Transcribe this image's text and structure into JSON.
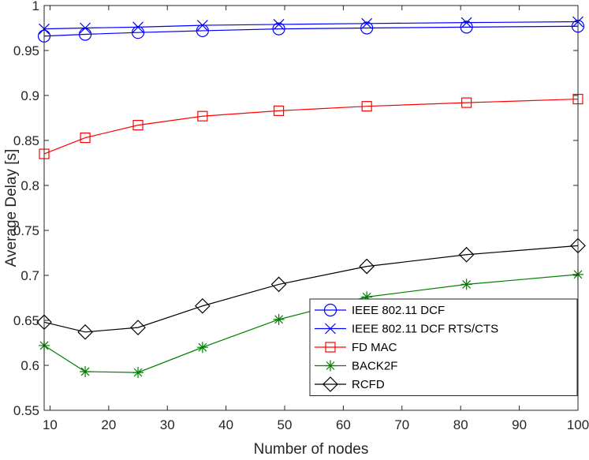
{
  "chart_data": {
    "type": "line",
    "title": "",
    "xlabel": "Number of nodes",
    "ylabel": "Average Delay [s]",
    "xlim": [
      9,
      100
    ],
    "ylim": [
      0.55,
      1.0
    ],
    "x_ticks": [
      10,
      20,
      30,
      40,
      50,
      60,
      70,
      80,
      90,
      100
    ],
    "y_ticks": [
      0.55,
      0.6,
      0.65,
      0.7,
      0.75,
      0.8,
      0.85,
      0.9,
      0.95,
      1.0
    ],
    "x_tick_labels": [
      "10",
      "20",
      "30",
      "40",
      "50",
      "60",
      "70",
      "80",
      "90",
      "100"
    ],
    "y_tick_labels": [
      "0.55",
      "0.6",
      "0.65",
      "0.7",
      "0.75",
      "0.8",
      "0.85",
      "0.9",
      "0.95",
      "1"
    ],
    "grid": false,
    "legend_position": "bottom-right",
    "x": [
      9,
      16,
      25,
      36,
      49,
      64,
      81,
      100
    ],
    "series": [
      {
        "name": "IEEE 802.11 DCF",
        "color": "#0000ff",
        "marker": "circle",
        "values": [
          0.966,
          0.968,
          0.97,
          0.972,
          0.974,
          0.975,
          0.976,
          0.977
        ]
      },
      {
        "name": "IEEE 802.11 DCF RTS/CTS",
        "color": "#0000ff",
        "marker": "x",
        "values": [
          0.974,
          0.975,
          0.976,
          0.978,
          0.979,
          0.98,
          0.981,
          0.982
        ]
      },
      {
        "name": "FD MAC",
        "color": "#ff0000",
        "marker": "square",
        "values": [
          0.835,
          0.853,
          0.867,
          0.877,
          0.883,
          0.888,
          0.892,
          0.896
        ]
      },
      {
        "name": "BACK2F",
        "color": "#008000",
        "marker": "asterisk",
        "values": [
          0.622,
          0.593,
          0.592,
          0.62,
          0.651,
          0.676,
          0.69,
          0.701
        ]
      },
      {
        "name": "RCFD",
        "color": "#000000",
        "marker": "diamond",
        "values": [
          0.648,
          0.637,
          0.642,
          0.666,
          0.69,
          0.71,
          0.723,
          0.733
        ]
      }
    ]
  }
}
